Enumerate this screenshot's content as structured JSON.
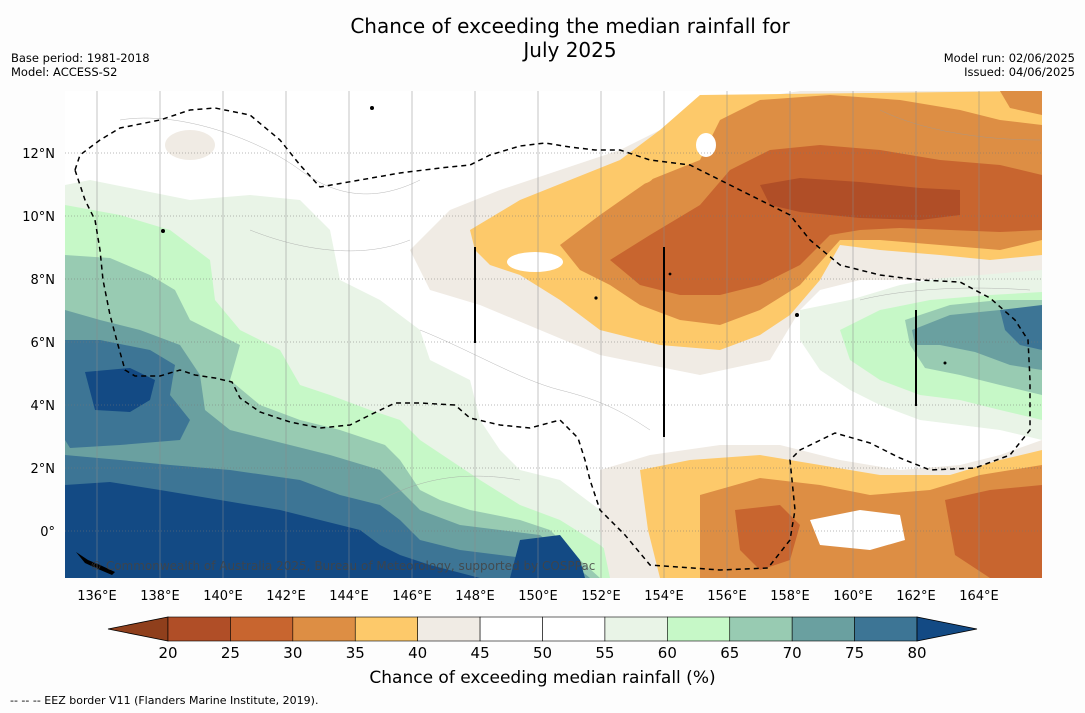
{
  "title": {
    "line1": "Chance of exceeding the median rainfall for",
    "line2": "July 2025"
  },
  "meta": {
    "base_period": "Base period: 1981-2018",
    "model": "Model: ACCESS-S2",
    "model_run": "Model run: 02/06/2025",
    "issued": "Issued: 04/06/2025"
  },
  "map": {
    "region": "Micronesia / western tropical Pacific",
    "lon_range": [
      135,
      166
    ],
    "lat_range": [
      -1.5,
      14
    ],
    "x_ticks": [
      "136°E",
      "138°E",
      "140°E",
      "142°E",
      "144°E",
      "146°E",
      "148°E",
      "150°E",
      "152°E",
      "154°E",
      "156°E",
      "158°E",
      "160°E",
      "162°E",
      "164°E"
    ],
    "y_ticks": [
      "12°N",
      "10°N",
      "8°N",
      "6°N",
      "4°N",
      "2°N",
      "0°"
    ],
    "credit": "© Commonwealth of Australia 2025, Bureau of Meteorology, supported by COSPPac",
    "eez_style": "dashed black line",
    "zone_dividers": "solid black vertical lines",
    "summary": {
      "dry_regions": "north-central and north-east (10–40% chance, orange/brown), plus south-east near the equator",
      "wet_regions": "west and south-west (65–80%+ chance, blue), plus pockets near 162°E 4–7°N"
    }
  },
  "colorbar": {
    "title": "Chance of exceeding median rainfall (%)",
    "ticks": [
      "20",
      "25",
      "30",
      "35",
      "40",
      "45",
      "50",
      "55",
      "60",
      "65",
      "70",
      "75",
      "80"
    ],
    "colors": [
      "#8f3f1c",
      "#b04e27",
      "#c8652f",
      "#dd8e44",
      "#fdc96a",
      "#f0ebe4",
      "#ffffff",
      "#ffffff",
      "#e9f4e7",
      "#c6f8c7",
      "#98cbb2",
      "#6aa0a0",
      "#3d7595",
      "#134a84"
    ],
    "extend_low_color": "#8f3f1c",
    "extend_high_color": "#134a84"
  },
  "footnote": "--  --  -- EEZ border V11 (Flanders Marine Institute, 2019)."
}
